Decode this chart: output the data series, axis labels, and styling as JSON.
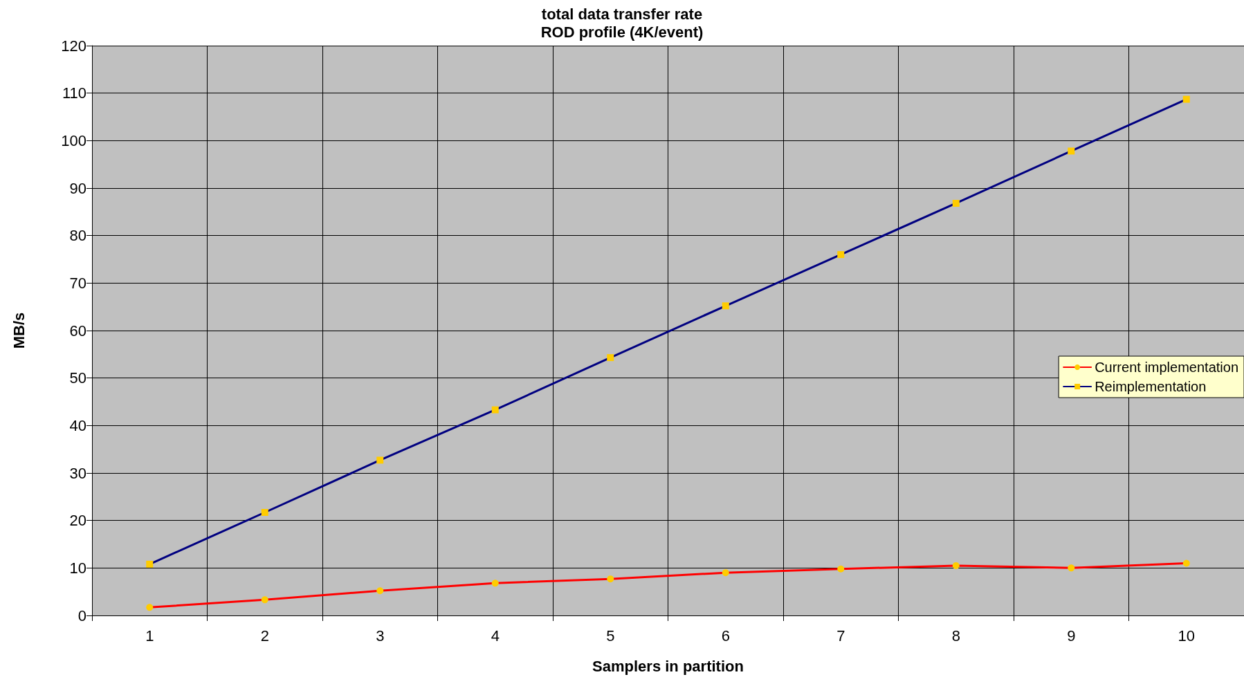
{
  "chart_data": {
    "type": "line",
    "title": "total data transfer rate",
    "subtitle": "ROD profile (4K/event)",
    "xlabel": "Samplers in partition",
    "ylabel": "MB/s",
    "categories": [
      "1",
      "2",
      "3",
      "4",
      "5",
      "6",
      "7",
      "8",
      "9",
      "10"
    ],
    "series": [
      {
        "name": "Current implementation",
        "color": "#ff0000",
        "marker": "circle",
        "values": [
          1.7,
          3.3,
          5.2,
          6.8,
          7.7,
          9.0,
          9.8,
          10.5,
          10.0,
          11.0
        ]
      },
      {
        "name": "Reimplementation",
        "color": "#000080",
        "marker": "square",
        "values": [
          10.8,
          21.7,
          32.7,
          43.3,
          54.3,
          65.2,
          76.0,
          86.8,
          97.8,
          108.7
        ]
      }
    ],
    "ylim": [
      0,
      120
    ],
    "yticks": [
      0,
      10,
      20,
      30,
      40,
      50,
      60,
      70,
      80,
      90,
      100,
      110,
      120
    ],
    "grid": true,
    "legend": "right",
    "line_style": "solid"
  }
}
